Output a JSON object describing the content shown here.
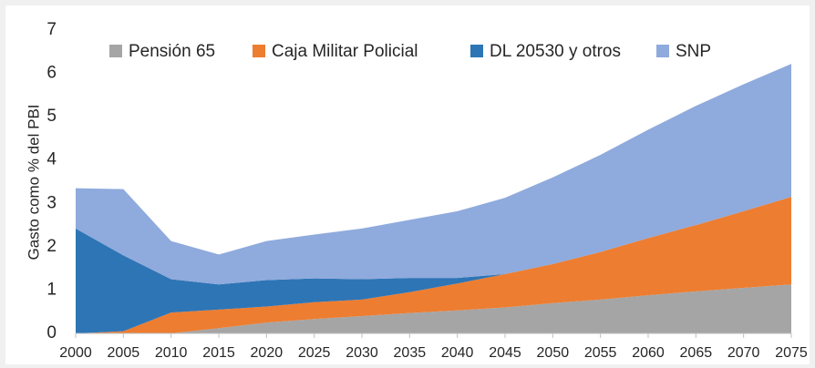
{
  "chart_data": {
    "type": "area",
    "stacked": true,
    "y_label": "Gasto como % del PBI",
    "x": [
      2000,
      2005,
      2010,
      2015,
      2020,
      2025,
      2030,
      2035,
      2040,
      2045,
      2050,
      2055,
      2060,
      2065,
      2070,
      2075
    ],
    "xlim": [
      2000,
      2075
    ],
    "xticks": [
      2000,
      2005,
      2010,
      2015,
      2020,
      2025,
      2030,
      2035,
      2040,
      2045,
      2050,
      2055,
      2060,
      2065,
      2070,
      2075
    ],
    "ylim": [
      0,
      7
    ],
    "yticks": [
      0,
      1,
      2,
      3,
      4,
      5,
      6,
      7
    ],
    "grid": false,
    "legend": "top",
    "series": [
      {
        "name": "Pensión 65",
        "color": "#a5a5a5",
        "values": [
          0,
          0,
          0,
          0.12,
          0.25,
          0.33,
          0.4,
          0.47,
          0.53,
          0.6,
          0.7,
          0.78,
          0.88,
          0.97,
          1.05,
          1.13
        ]
      },
      {
        "name": "Caja Militar Policial",
        "color": "#ed7d31",
        "values": [
          0,
          0.05,
          0.48,
          0.43,
          0.37,
          0.39,
          0.38,
          0.48,
          0.62,
          0.77,
          0.9,
          1.1,
          1.32,
          1.53,
          1.77,
          2.02
        ]
      },
      {
        "name": "DL 20530 y otros",
        "color": "#2e75b6",
        "values": [
          2.42,
          1.75,
          0.77,
          0.58,
          0.61,
          0.55,
          0.47,
          0.33,
          0.13,
          0,
          0,
          0,
          0,
          0,
          0,
          0
        ]
      },
      {
        "name": "SNP",
        "color": "#8faadc",
        "values": [
          0.93,
          1.53,
          0.88,
          0.69,
          0.9,
          1.01,
          1.17,
          1.34,
          1.54,
          1.76,
          2.0,
          2.24,
          2.5,
          2.75,
          2.93,
          3.07
        ]
      }
    ]
  }
}
